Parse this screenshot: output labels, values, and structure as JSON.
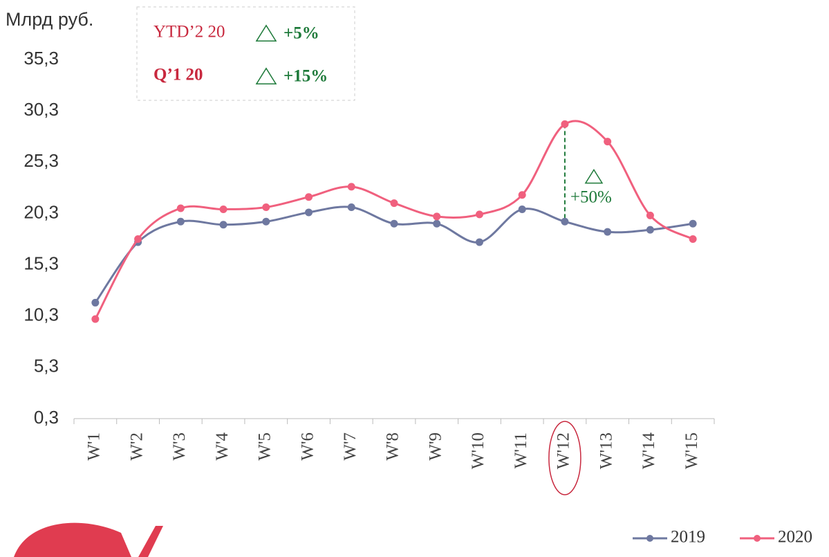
{
  "chart_data": {
    "type": "line",
    "unit_label": "Млрд руб.",
    "categories": [
      "W'1",
      "W'2",
      "W'3",
      "W'4",
      "W'5",
      "W'6",
      "W'7",
      "W'8",
      "W'9",
      "W'10",
      "W'11",
      "W'12",
      "W'13",
      "W'14",
      "W'15"
    ],
    "series": [
      {
        "name": "2019",
        "color": "#6e78a0",
        "values": [
          11.6,
          17.5,
          19.5,
          19.2,
          19.5,
          20.4,
          20.9,
          19.3,
          19.3,
          17.5,
          20.7,
          19.5,
          18.5,
          18.7,
          19.3
        ]
      },
      {
        "name": "2020",
        "color": "#f0607e",
        "values": [
          10.0,
          17.8,
          20.8,
          20.7,
          20.9,
          21.9,
          22.9,
          21.3,
          20.0,
          20.2,
          22.1,
          29.0,
          27.3,
          20.1,
          17.8
        ]
      }
    ],
    "ylim": [
      0.3,
      35.3
    ],
    "yticks": [
      {
        "value": 0.3,
        "label": "0,3"
      },
      {
        "value": 5.3,
        "label": "5,3"
      },
      {
        "value": 10.3,
        "label": "10,3"
      },
      {
        "value": 15.3,
        "label": "15,3"
      },
      {
        "value": 20.3,
        "label": "20,3"
      },
      {
        "value": 25.3,
        "label": "25,3"
      },
      {
        "value": 30.3,
        "label": "30,3"
      },
      {
        "value": 35.3,
        "label": "35,3"
      }
    ],
    "summary": [
      {
        "label": "YTD’2 20",
        "change": "+5%"
      },
      {
        "label": "Q’1 20",
        "change": "+15%"
      }
    ],
    "annotation": {
      "category_index": 11,
      "text": "+50%"
    },
    "legend": "bottom-right"
  }
}
